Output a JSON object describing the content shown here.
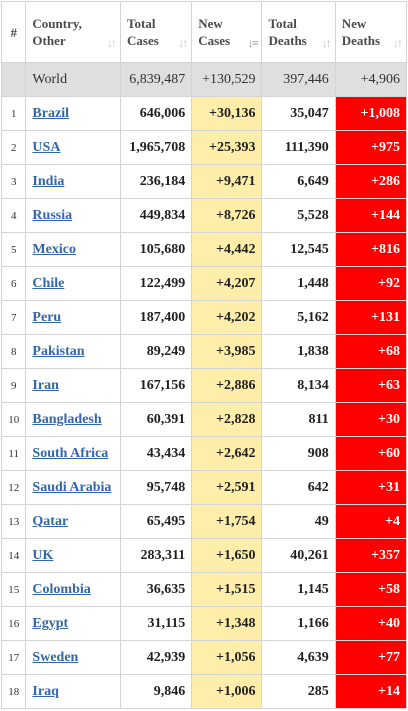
{
  "headers": {
    "index": "#",
    "country": [
      "Country,",
      "Other"
    ],
    "total_cases": [
      "Total",
      "Cases"
    ],
    "new_cases": [
      "New",
      "Cases"
    ],
    "total_deaths": [
      "Total",
      "Deaths"
    ],
    "new_deaths": [
      "New",
      "Deaths"
    ],
    "sort_icon": "sort-arrows-icon",
    "sort_active_icon": "sort-desc-icon"
  },
  "world": {
    "label": "World",
    "total_cases": "6,839,487",
    "new_cases": "+130,529",
    "total_deaths": "397,446",
    "new_deaths": "+4,906"
  },
  "rows": [
    {
      "idx": "1",
      "country": "Brazil",
      "total_cases": "646,006",
      "new_cases": "+30,136",
      "total_deaths": "35,047",
      "new_deaths": "+1,008"
    },
    {
      "idx": "2",
      "country": "USA",
      "total_cases": "1,965,708",
      "new_cases": "+25,393",
      "total_deaths": "111,390",
      "new_deaths": "+975"
    },
    {
      "idx": "3",
      "country": "India",
      "total_cases": "236,184",
      "new_cases": "+9,471",
      "total_deaths": "6,649",
      "new_deaths": "+286"
    },
    {
      "idx": "4",
      "country": "Russia",
      "total_cases": "449,834",
      "new_cases": "+8,726",
      "total_deaths": "5,528",
      "new_deaths": "+144"
    },
    {
      "idx": "5",
      "country": "Mexico",
      "total_cases": "105,680",
      "new_cases": "+4,442",
      "total_deaths": "12,545",
      "new_deaths": "+816"
    },
    {
      "idx": "6",
      "country": "Chile",
      "total_cases": "122,499",
      "new_cases": "+4,207",
      "total_deaths": "1,448",
      "new_deaths": "+92"
    },
    {
      "idx": "7",
      "country": "Peru",
      "total_cases": "187,400",
      "new_cases": "+4,202",
      "total_deaths": "5,162",
      "new_deaths": "+131"
    },
    {
      "idx": "8",
      "country": "Pakistan",
      "total_cases": "89,249",
      "new_cases": "+3,985",
      "total_deaths": "1,838",
      "new_deaths": "+68"
    },
    {
      "idx": "9",
      "country": "Iran",
      "total_cases": "167,156",
      "new_cases": "+2,886",
      "total_deaths": "8,134",
      "new_deaths": "+63"
    },
    {
      "idx": "10",
      "country": "Bangladesh",
      "total_cases": "60,391",
      "new_cases": "+2,828",
      "total_deaths": "811",
      "new_deaths": "+30"
    },
    {
      "idx": "11",
      "country": "South Africa",
      "total_cases": "43,434",
      "new_cases": "+2,642",
      "total_deaths": "908",
      "new_deaths": "+60"
    },
    {
      "idx": "12",
      "country": "Saudi Arabia",
      "total_cases": "95,748",
      "new_cases": "+2,591",
      "total_deaths": "642",
      "new_deaths": "+31"
    },
    {
      "idx": "13",
      "country": "Qatar",
      "total_cases": "65,495",
      "new_cases": "+1,754",
      "total_deaths": "49",
      "new_deaths": "+4"
    },
    {
      "idx": "14",
      "country": "UK",
      "total_cases": "283,311",
      "new_cases": "+1,650",
      "total_deaths": "40,261",
      "new_deaths": "+357"
    },
    {
      "idx": "15",
      "country": "Colombia",
      "total_cases": "36,635",
      "new_cases": "+1,515",
      "total_deaths": "1,145",
      "new_deaths": "+58"
    },
    {
      "idx": "16",
      "country": "Egypt",
      "total_cases": "31,115",
      "new_cases": "+1,348",
      "total_deaths": "1,166",
      "new_deaths": "+40"
    },
    {
      "idx": "17",
      "country": "Sweden",
      "total_cases": "42,939",
      "new_cases": "+1,056",
      "total_deaths": "4,639",
      "new_deaths": "+77"
    },
    {
      "idx": "18",
      "country": "Iraq",
      "total_cases": "9,846",
      "new_cases": "+1,006",
      "total_deaths": "285",
      "new_deaths": "+14"
    }
  ],
  "colors": {
    "new_cases_bg": "#ffeeaa",
    "new_deaths_bg": "#ff0000",
    "world_row_bg": "#dfdfdf",
    "link": "#3366aa"
  }
}
